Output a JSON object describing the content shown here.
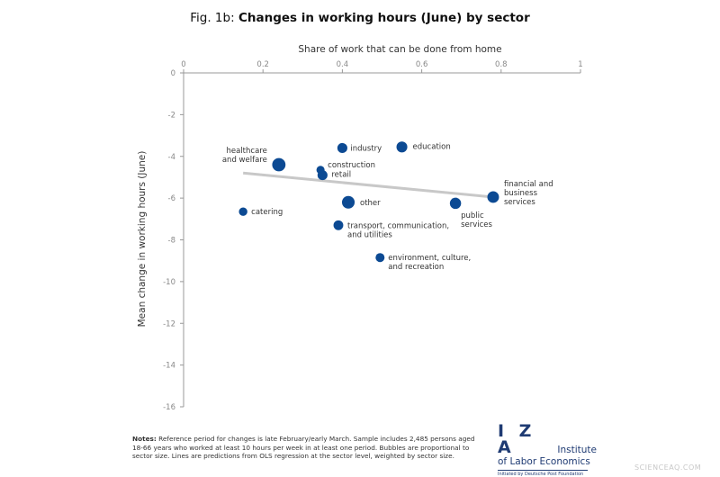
{
  "title": {
    "prefix": "Fig. 1b:",
    "main": "Changes in working hours (June) by sector"
  },
  "chart_data": {
    "type": "scatter",
    "xlabel": "Share of work that can be done from home",
    "ylabel": "Mean change in working hours (June)",
    "xlim": [
      0,
      1
    ],
    "ylim": [
      -16,
      0
    ],
    "x_ticks": [
      "0",
      "0.2",
      "0.4",
      "0.6",
      "0.8",
      "1"
    ],
    "y_ticks": [
      "0",
      "-2",
      "-4",
      "-6",
      "-8",
      "-10",
      "-12",
      "-14",
      "-16"
    ],
    "x_axis_position": "top",
    "grid": false,
    "bubble_color": "#0c4a93",
    "line_color": "#c8c8c8",
    "points": [
      {
        "label": "healthcare and welfare",
        "x": 0.24,
        "y": -4.4,
        "size": 3.4
      },
      {
        "label": "industry",
        "x": 0.4,
        "y": -3.6,
        "size": 1.6
      },
      {
        "label": "education",
        "x": 0.55,
        "y": -3.55,
        "size": 2.0
      },
      {
        "label": "construction",
        "x": 0.345,
        "y": -4.65,
        "size": 0.9
      },
      {
        "label": "retail",
        "x": 0.35,
        "y": -4.9,
        "size": 1.6
      },
      {
        "label": "other",
        "x": 0.415,
        "y": -6.2,
        "size": 3.0
      },
      {
        "label": "financial and business services",
        "x": 0.78,
        "y": -5.95,
        "size": 2.4
      },
      {
        "label": "public services",
        "x": 0.685,
        "y": -6.25,
        "size": 2.2
      },
      {
        "label": "catering",
        "x": 0.15,
        "y": -6.65,
        "size": 1.0
      },
      {
        "label": "transport, communication, and utilities",
        "x": 0.39,
        "y": -7.3,
        "size": 1.5
      },
      {
        "label": "environment, culture, and recreation",
        "x": 0.495,
        "y": -8.85,
        "size": 1.2
      }
    ],
    "regression_line": {
      "x": [
        0.15,
        0.78
      ],
      "y": [
        -4.8,
        -5.95
      ]
    }
  },
  "notes": {
    "label": "Notes:",
    "text": "Reference period for changes is late February/early March. Sample includes 2,485 persons aged 18-66 years who worked at least 10 hours per week in at least one period. Bubbles are proportional to sector size. Lines are predictions from OLS regression at the sector level, weighted by sector size."
  },
  "logo": {
    "mark": "I Z A",
    "line1": "Institute",
    "line2": "of Labor Economics",
    "tagline": "Initiated by Deutsche Post Foundation"
  },
  "watermark": "SCIENCEAQ.COM"
}
